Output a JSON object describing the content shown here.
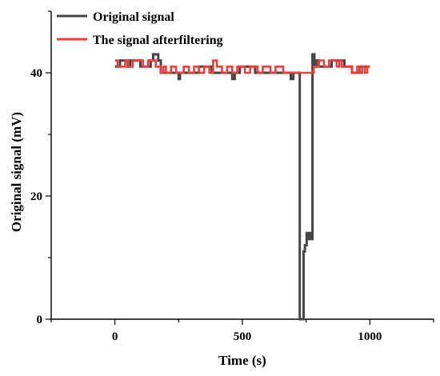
{
  "chart_data": {
    "type": "line",
    "xlabel": "Time (s)",
    "ylabel": "Original signal (mV)",
    "xlim": [
      -250,
      1250
    ],
    "ylim": [
      0,
      50
    ],
    "xticks": [
      0,
      500,
      1000
    ],
    "yticks": [
      0,
      20,
      40
    ],
    "legend_position": "top-left",
    "grid": false,
    "series": [
      {
        "name": "Original signal",
        "color": "#454545",
        "x": [
          0,
          20,
          20,
          50,
          50,
          60,
          60,
          100,
          100,
          140,
          140,
          150,
          150,
          170,
          170,
          180,
          180,
          250,
          250,
          255,
          255,
          300,
          300,
          330,
          330,
          380,
          380,
          460,
          460,
          470,
          470,
          480,
          480,
          490,
          490,
          550,
          550,
          600,
          600,
          690,
          690,
          700,
          700,
          715,
          715,
          725,
          725,
          740,
          740,
          745,
          745,
          752,
          752,
          758,
          758,
          765,
          765,
          770,
          770,
          775,
          775,
          782,
          782,
          790,
          790,
          800,
          800,
          850,
          850,
          900,
          900,
          930,
          930,
          960,
          960,
          1000
        ],
        "y": [
          41,
          41,
          42,
          42,
          41,
          41,
          42,
          42,
          41,
          41,
          42,
          42,
          43,
          43,
          42,
          42,
          40,
          40,
          39,
          39,
          40,
          40,
          40,
          40,
          41,
          41,
          40,
          40,
          39,
          39,
          40,
          40,
          40,
          40,
          41,
          41,
          40,
          40,
          40,
          40,
          39,
          39,
          40,
          40,
          40,
          40,
          0,
          0,
          11,
          11,
          12,
          12,
          14,
          14,
          13,
          13,
          14,
          14,
          13,
          13,
          43,
          43,
          41,
          41,
          42,
          42,
          41,
          41,
          42,
          42,
          41,
          41,
          40,
          40,
          41,
          41
        ]
      },
      {
        "name": "The signal afterfiltering",
        "color": "#e8413c",
        "x": [
          0,
          10,
          10,
          40,
          40,
          50,
          50,
          70,
          70,
          110,
          110,
          130,
          130,
          160,
          160,
          180,
          180,
          190,
          190,
          200,
          200,
          220,
          220,
          240,
          240,
          270,
          270,
          290,
          290,
          310,
          310,
          330,
          330,
          350,
          350,
          370,
          370,
          385,
          385,
          400,
          400,
          420,
          420,
          440,
          440,
          460,
          460,
          480,
          480,
          510,
          510,
          530,
          530,
          560,
          560,
          580,
          580,
          610,
          610,
          630,
          630,
          660,
          660,
          690,
          690,
          720,
          720,
          780,
          780,
          800,
          800,
          820,
          820,
          840,
          840,
          850,
          850,
          870,
          870,
          880,
          880,
          890,
          890,
          900,
          900,
          930,
          930,
          950,
          950,
          960,
          960,
          970,
          970,
          980,
          980,
          990,
          990,
          1000
        ],
        "y": [
          42,
          42,
          41,
          41,
          42,
          42,
          41,
          41,
          42,
          42,
          41,
          41,
          42,
          42,
          41,
          41,
          40,
          40,
          41,
          41,
          40,
          40,
          41,
          41,
          40,
          40,
          41,
          41,
          40,
          40,
          41,
          41,
          40,
          40,
          41,
          41,
          40,
          40,
          42,
          42,
          41,
          41,
          40,
          40,
          41,
          41,
          40,
          40,
          41,
          41,
          40,
          40,
          41,
          41,
          40,
          40,
          41,
          41,
          40,
          40,
          41,
          41,
          40,
          40,
          40,
          40,
          40,
          40,
          41,
          41,
          42,
          42,
          41,
          41,
          42,
          42,
          42,
          42,
          41,
          41,
          42,
          42,
          41,
          41,
          41,
          41,
          40,
          40,
          41,
          41,
          40,
          40,
          41,
          41,
          40,
          40,
          41,
          41
        ]
      }
    ]
  }
}
